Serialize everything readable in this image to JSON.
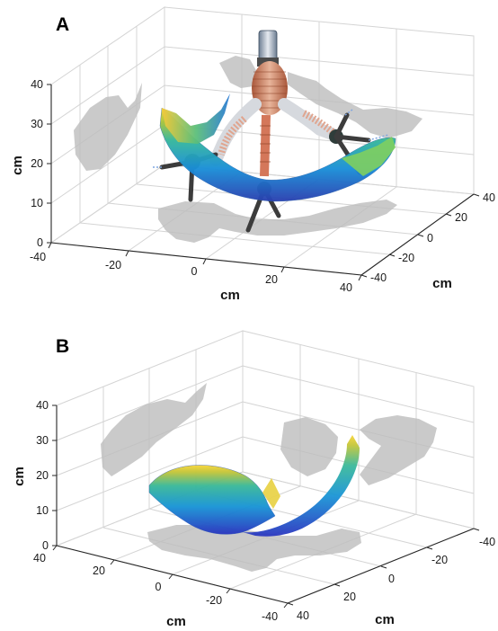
{
  "chart_data": [
    {
      "type": "surface3d",
      "panel_label": "A",
      "xlabel": "cm",
      "ylabel": "cm",
      "zlabel": "cm",
      "x_ticks": [
        "-40",
        "-20",
        "0",
        "20",
        "40"
      ],
      "y_ticks": [
        "-40",
        "-20",
        "0",
        "20",
        "40"
      ],
      "z_ticks": [
        "0",
        "10",
        "20",
        "30",
        "40"
      ],
      "xlim": [
        -40,
        40
      ],
      "ylim": [
        -40,
        40
      ],
      "zlim": [
        0,
        40
      ],
      "grid": true,
      "colormap": "parula",
      "robot_overlay": true
    },
    {
      "type": "surface3d",
      "panel_label": "B",
      "xlabel": "cm",
      "ylabel": "cm",
      "zlabel": "cm",
      "x_ticks": [
        "40",
        "20",
        "0",
        "-20",
        "-40"
      ],
      "y_ticks": [
        "40",
        "20",
        "0",
        "-20",
        "-40"
      ],
      "z_ticks": [
        "0",
        "10",
        "20",
        "30",
        "40"
      ],
      "xlim": [
        40,
        -40
      ],
      "ylim": [
        40,
        -40
      ],
      "zlim": [
        0,
        40
      ],
      "grid": true,
      "colormap": "parula",
      "robot_overlay": false
    }
  ]
}
